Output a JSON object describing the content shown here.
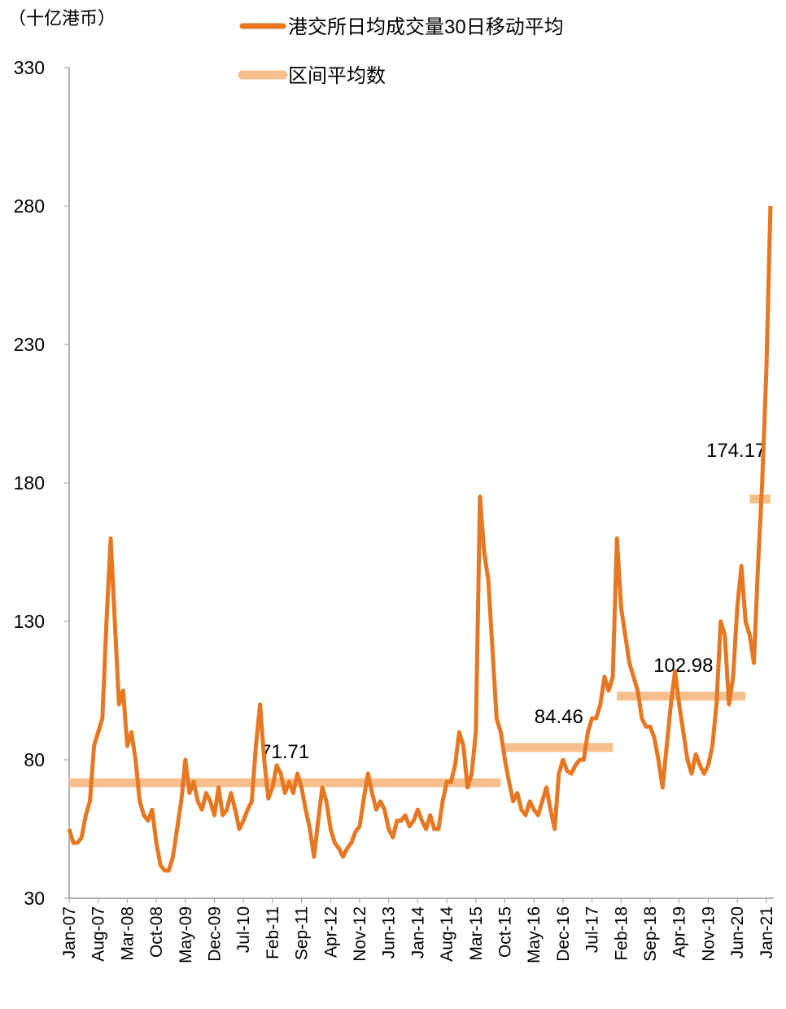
{
  "chart_data": {
    "type": "line",
    "unit_label": "（十亿港币）",
    "categories": [
      "Jan-07",
      null,
      null,
      null,
      null,
      null,
      null,
      "Aug-07",
      null,
      null,
      null,
      null,
      null,
      null,
      "Mar-08",
      null,
      null,
      null,
      null,
      null,
      null,
      "Oct-08",
      null,
      null,
      null,
      null,
      null,
      null,
      "May-09",
      null,
      null,
      null,
      null,
      null,
      null,
      "Dec-09",
      null,
      null,
      null,
      null,
      null,
      null,
      "Jul-10",
      null,
      null,
      null,
      null,
      null,
      null,
      "Feb-11",
      null,
      null,
      null,
      null,
      null,
      null,
      "Sep-11",
      null,
      null,
      null,
      null,
      null,
      null,
      "Apr-12",
      null,
      null,
      null,
      null,
      null,
      null,
      "Nov-12",
      null,
      null,
      null,
      null,
      null,
      null,
      "Jun-13",
      null,
      null,
      null,
      null,
      null,
      null,
      "Jan-14",
      null,
      null,
      null,
      null,
      null,
      null,
      "Aug-14",
      null,
      null,
      null,
      null,
      null,
      null,
      "Mar-15",
      null,
      null,
      null,
      null,
      null,
      null,
      "Oct-15",
      null,
      null,
      null,
      null,
      null,
      null,
      "May-16",
      null,
      null,
      null,
      null,
      null,
      null,
      "Dec-16",
      null,
      null,
      null,
      null,
      null,
      null,
      "Jul-17",
      null,
      null,
      null,
      null,
      null,
      null,
      "Feb-18",
      null,
      null,
      null,
      null,
      null,
      null,
      "Sep-18",
      null,
      null,
      null,
      null,
      null,
      null,
      "Apr-19",
      null,
      null,
      null,
      null,
      null,
      null,
      "Nov-19",
      null,
      null,
      null,
      null,
      null,
      null,
      "Jun-20",
      null,
      null,
      null,
      null,
      null,
      null,
      "Jan-21",
      null
    ],
    "series": [
      {
        "name": "港交所日均成交量30日移动平均",
        "color": "#e87722",
        "values": [
          55,
          50,
          50,
          52,
          60,
          65,
          85,
          90,
          95,
          130,
          160,
          130,
          100,
          105,
          85,
          90,
          80,
          65,
          60,
          58,
          62,
          50,
          42,
          40,
          40,
          45,
          55,
          65,
          80,
          68,
          72,
          65,
          62,
          68,
          65,
          60,
          70,
          60,
          62,
          68,
          62,
          55,
          58,
          62,
          65,
          85,
          100,
          80,
          66,
          70,
          78,
          75,
          68,
          72,
          68,
          75,
          70,
          62,
          55,
          45,
          58,
          70,
          65,
          55,
          50,
          48,
          45,
          48,
          50,
          54,
          56,
          66,
          75,
          68,
          62,
          65,
          62,
          55,
          52,
          58,
          58,
          60,
          56,
          58,
          62,
          58,
          55,
          60,
          55,
          55,
          65,
          72,
          72,
          78,
          90,
          85,
          70,
          75,
          90,
          175,
          155,
          145,
          120,
          95,
          90,
          80,
          72,
          65,
          68,
          62,
          60,
          65,
          62,
          60,
          65,
          70,
          62,
          55,
          75,
          80,
          76,
          75,
          78,
          80,
          80,
          90,
          95,
          95,
          100,
          110,
          105,
          110,
          160,
          135,
          125,
          115,
          110,
          105,
          95,
          92,
          92,
          88,
          80,
          70,
          85,
          100,
          112,
          100,
          90,
          80,
          75,
          82,
          78,
          75,
          78,
          85,
          100,
          130,
          125,
          100,
          110,
          135,
          150,
          130,
          125,
          115,
          150,
          180,
          220,
          280
        ]
      },
      {
        "name": "区间平均数",
        "color": "#f6bf8e",
        "values": [
          71.71,
          71.71,
          71.71,
          71.71,
          71.71,
          71.71,
          71.71,
          71.71,
          71.71,
          71.71,
          71.71,
          71.71,
          71.71,
          71.71,
          71.71,
          71.71,
          71.71,
          71.71,
          71.71,
          71.71,
          71.71,
          71.71,
          71.71,
          71.71,
          71.71,
          71.71,
          71.71,
          71.71,
          71.71,
          71.71,
          71.71,
          71.71,
          71.71,
          71.71,
          71.71,
          71.71,
          71.71,
          71.71,
          71.71,
          71.71,
          71.71,
          71.71,
          71.71,
          71.71,
          71.71,
          71.71,
          71.71,
          71.71,
          71.71,
          71.71,
          71.71,
          71.71,
          71.71,
          71.71,
          71.71,
          71.71,
          71.71,
          71.71,
          71.71,
          71.71,
          71.71,
          71.71,
          71.71,
          71.71,
          71.71,
          71.71,
          71.71,
          71.71,
          71.71,
          71.71,
          71.71,
          71.71,
          71.71,
          71.71,
          71.71,
          71.71,
          71.71,
          71.71,
          71.71,
          71.71,
          71.71,
          71.71,
          71.71,
          71.71,
          71.71,
          71.71,
          71.71,
          71.71,
          71.71,
          71.71,
          71.71,
          71.71,
          71.71,
          71.71,
          71.71,
          71.71,
          71.71,
          71.71,
          71.71,
          71.71,
          71.71,
          71.71,
          71.71,
          71.71,
          71.71,
          84.46,
          84.46,
          84.46,
          84.46,
          84.46,
          84.46,
          84.46,
          84.46,
          84.46,
          84.46,
          84.46,
          84.46,
          84.46,
          84.46,
          84.46,
          84.46,
          84.46,
          84.46,
          84.46,
          84.46,
          84.46,
          84.46,
          84.46,
          84.46,
          84.46,
          84.46,
          84.46,
          102.98,
          102.98,
          102.98,
          102.98,
          102.98,
          102.98,
          102.98,
          102.98,
          102.98,
          102.98,
          102.98,
          102.98,
          102.98,
          102.98,
          102.98,
          102.98,
          102.98,
          102.98,
          102.98,
          102.98,
          102.98,
          102.98,
          102.98,
          102.98,
          102.98,
          102.98,
          102.98,
          102.98,
          102.98,
          102.98,
          102.98,
          102.98,
          174.17,
          174.17,
          174.17,
          174.17,
          174.17,
          174.17
        ]
      }
    ],
    "ylim": [
      30,
      330
    ],
    "yticks": [
      30,
      80,
      130,
      180,
      230,
      280,
      330
    ],
    "grid": false
  }
}
